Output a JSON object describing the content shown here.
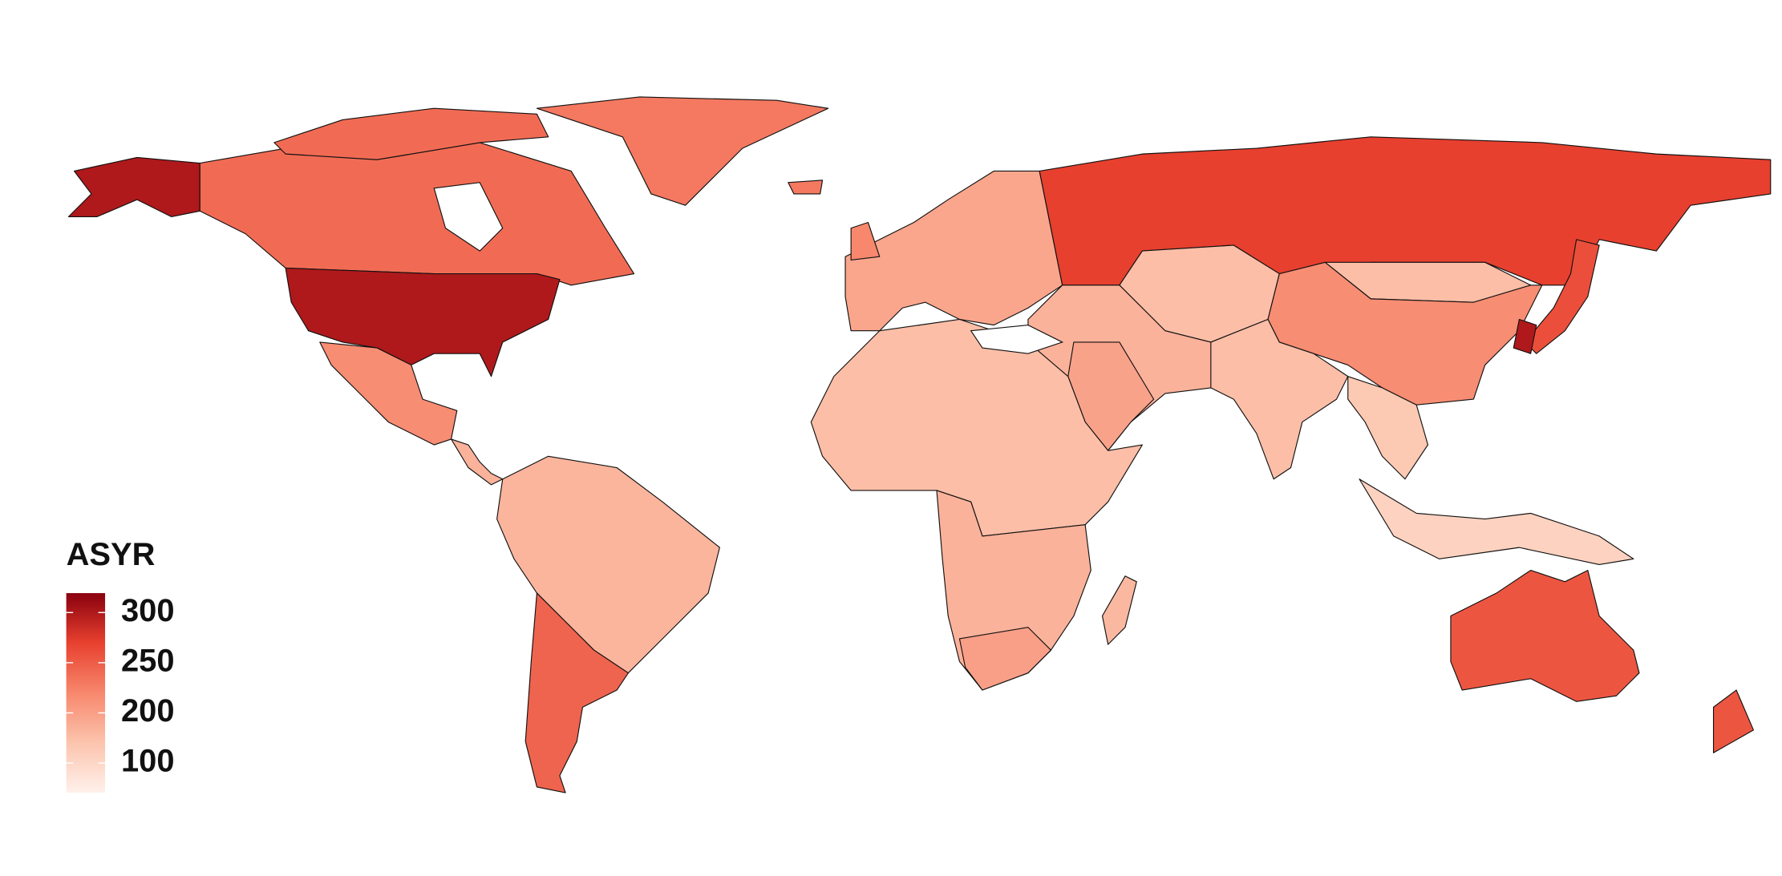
{
  "chart_data": {
    "type": "choropleth",
    "legend": {
      "title": "ASYR",
      "ticks": [
        300,
        250,
        200,
        100
      ],
      "colors": [
        "#fff1eb",
        "#fcc4ad",
        "#f7876d",
        "#e8412f",
        "#8a000e"
      ]
    },
    "regions": {
      "values": [
        300,
        240,
        240,
        230,
        300,
        215,
        170,
        165,
        245,
        190,
        270,
        150,
        150,
        215,
        170,
        195,
        150,
        150,
        170,
        200,
        160,
        130,
        110,
        260,
        300,
        255,
        255,
        230,
        220
      ]
    }
  }
}
